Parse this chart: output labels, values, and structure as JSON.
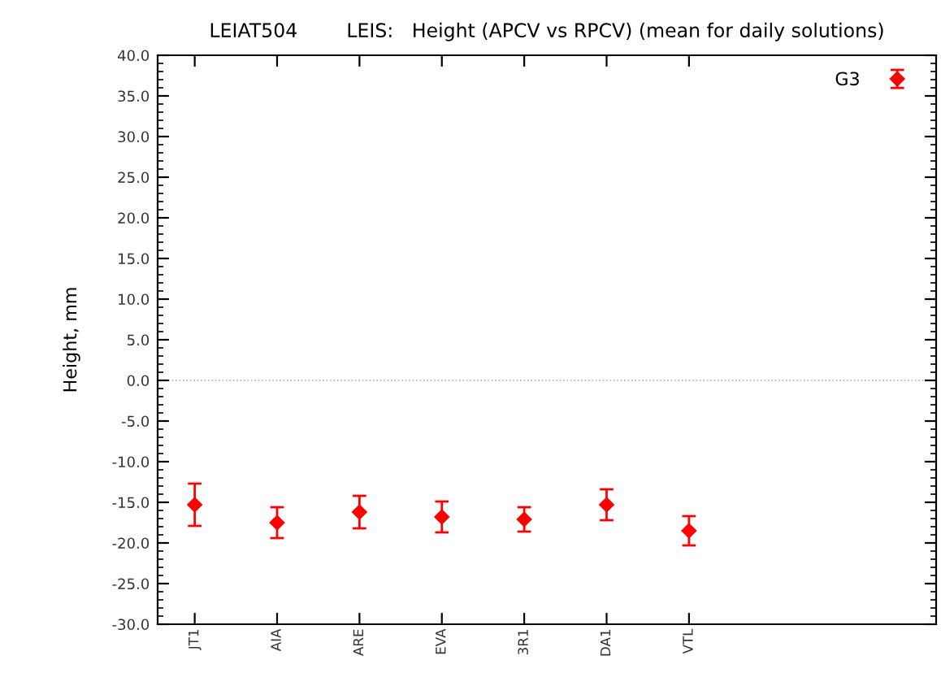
{
  "chart_data": {
    "type": "scatter",
    "title": "LEIAT504        LEIS:   Height (APCV vs RPCV) (mean for daily solutions)",
    "ylabel": "Height, mm",
    "categories": [
      "JT1",
      "AIA",
      "ARE",
      "EVA",
      "3R1",
      "DA1",
      "VTL"
    ],
    "series": [
      {
        "name": "G3",
        "color": "#ff0000",
        "values": [
          -15.3,
          -17.5,
          -16.2,
          -16.8,
          -17.1,
          -15.3,
          -18.5
        ],
        "errors": [
          2.6,
          1.9,
          2.0,
          1.9,
          1.5,
          1.9,
          1.8
        ]
      }
    ],
    "ylim": [
      -30,
      40
    ],
    "yticks": [
      {
        "value": -30,
        "label": "-30.0"
      },
      {
        "value": -25,
        "label": "-25.0"
      },
      {
        "value": -20,
        "label": "-20.0"
      },
      {
        "value": -15,
        "label": "-15.0"
      },
      {
        "value": -10,
        "label": "-10.0"
      },
      {
        "value": -5,
        "label": "-5.0"
      },
      {
        "value": 0,
        "label": "0.0"
      },
      {
        "value": 5,
        "label": "5.0"
      },
      {
        "value": 10,
        "label": "10.0"
      },
      {
        "value": 15,
        "label": "15.0"
      },
      {
        "value": 20,
        "label": "20.0"
      },
      {
        "value": 25,
        "label": "25.0"
      },
      {
        "value": 30,
        "label": "30.0"
      },
      {
        "value": 35,
        "label": "35.0"
      },
      {
        "value": 40,
        "label": "40.0"
      }
    ],
    "ref_lines": [
      {
        "axis": "y",
        "value": 0,
        "color": "#aaaaaa",
        "line_style": "dotted"
      }
    ],
    "marker": "diamond",
    "legend": "top right",
    "grid": false
  }
}
